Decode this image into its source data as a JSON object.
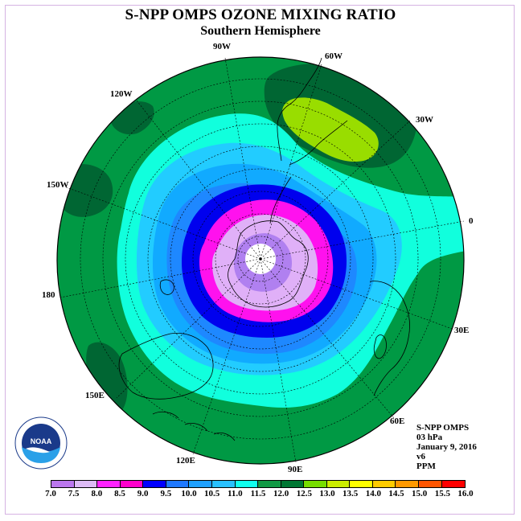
{
  "title": "S-NPP OMPS OZONE MIXING RATIO",
  "subtitle": "Southern Hemisphere",
  "longitude_labels": {
    "lon_90w": "90W",
    "lon_60w": "60W",
    "lon_30w": "30W",
    "lon_120w": "120W",
    "lon_150w": "150W",
    "lon_0": "0",
    "lon_180": "180",
    "lon_30e": "30E",
    "lon_60e": "60E",
    "lon_150e": "150E",
    "lon_120e": "120E",
    "lon_90e": "90E"
  },
  "info": {
    "instrument": "S-NPP OMPS",
    "level": "03 hPa",
    "date": "January 9, 2016",
    "version": "v6",
    "units": "PPM"
  },
  "logo": {
    "text": "NOAA"
  },
  "colorbar": {
    "ticks": [
      "7.0",
      "7.5",
      "8.0",
      "8.5",
      "9.0",
      "9.5",
      "10.0",
      "10.5",
      "11.0",
      "11.5",
      "12.0",
      "12.5",
      "13.0",
      "13.5",
      "14.0",
      "14.5",
      "15.0",
      "15.5",
      "16.0"
    ],
    "colors": [
      "#bb77ee",
      "#ddbbf5",
      "#ff22ff",
      "#ff00cc",
      "#0000ff",
      "#1e78ff",
      "#1ea0ff",
      "#28c0ff",
      "#11ffee",
      "#119944",
      "#007733",
      "#77dd00",
      "#ccee00",
      "#ffff00",
      "#ffcc00",
      "#ff9900",
      "#ff5500",
      "#ff0000",
      "#996644"
    ]
  },
  "map_colors": {
    "c_11_5": "#009944",
    "c_12_0": "#006633",
    "c_12_5": "#99dd00",
    "c_11_0": "#11ffdd",
    "c_10_5": "#22ccff",
    "c_10_0": "#11aaff",
    "c_9_5": "#1e88ff",
    "c_9_0": "#0000ee",
    "c_8_5": "#ff11ee",
    "c_8_0": "#e0b0f8",
    "c_7_5": "#b080f0",
    "c_7_0": "#ffffff"
  }
}
